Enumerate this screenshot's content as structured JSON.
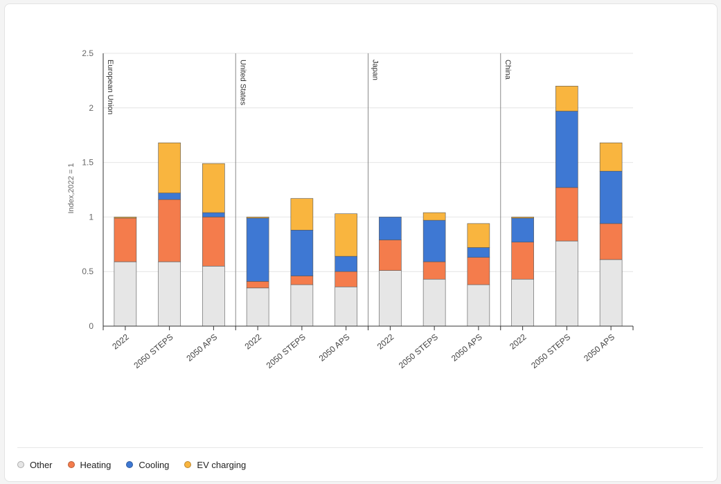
{
  "chart_data": {
    "type": "bar",
    "stacked": true,
    "ylabel": "Index,2022 = 1",
    "ylim": [
      0,
      2.5
    ],
    "yticks": [
      "0",
      "0.5",
      "1",
      "1.5",
      "2",
      "2.5"
    ],
    "grid": true,
    "legend_position": "bottom-left",
    "groups": [
      {
        "name": "European Union",
        "categories": [
          "2022",
          "2050 STEPS",
          "2050 APS"
        ]
      },
      {
        "name": "United States",
        "categories": [
          "2022",
          "2050 STEPS",
          "2050 APS"
        ]
      },
      {
        "name": "Japan",
        "categories": [
          "2022",
          "2050 STEPS",
          "2050 APS"
        ]
      },
      {
        "name": "China",
        "categories": [
          "2022",
          "2050 STEPS",
          "2050 APS"
        ]
      }
    ],
    "series": [
      {
        "name": "Other",
        "color": "#e6e6e6",
        "values": [
          0.59,
          0.59,
          0.55,
          0.35,
          0.38,
          0.36,
          0.51,
          0.43,
          0.38,
          0.43,
          0.78,
          0.61
        ]
      },
      {
        "name": "Heating",
        "color": "#f47c4c",
        "values": [
          0.4,
          0.57,
          0.45,
          0.06,
          0.08,
          0.14,
          0.28,
          0.16,
          0.25,
          0.34,
          0.49,
          0.33
        ]
      },
      {
        "name": "Cooling",
        "color": "#3e78d3",
        "values": [
          0.0,
          0.06,
          0.04,
          0.58,
          0.42,
          0.14,
          0.21,
          0.38,
          0.09,
          0.22,
          0.7,
          0.48
        ]
      },
      {
        "name": "EV charging",
        "color": "#f9b53f",
        "values": [
          0.01,
          0.46,
          0.45,
          0.01,
          0.29,
          0.39,
          0.0,
          0.07,
          0.22,
          0.01,
          0.23,
          0.26
        ]
      }
    ]
  }
}
